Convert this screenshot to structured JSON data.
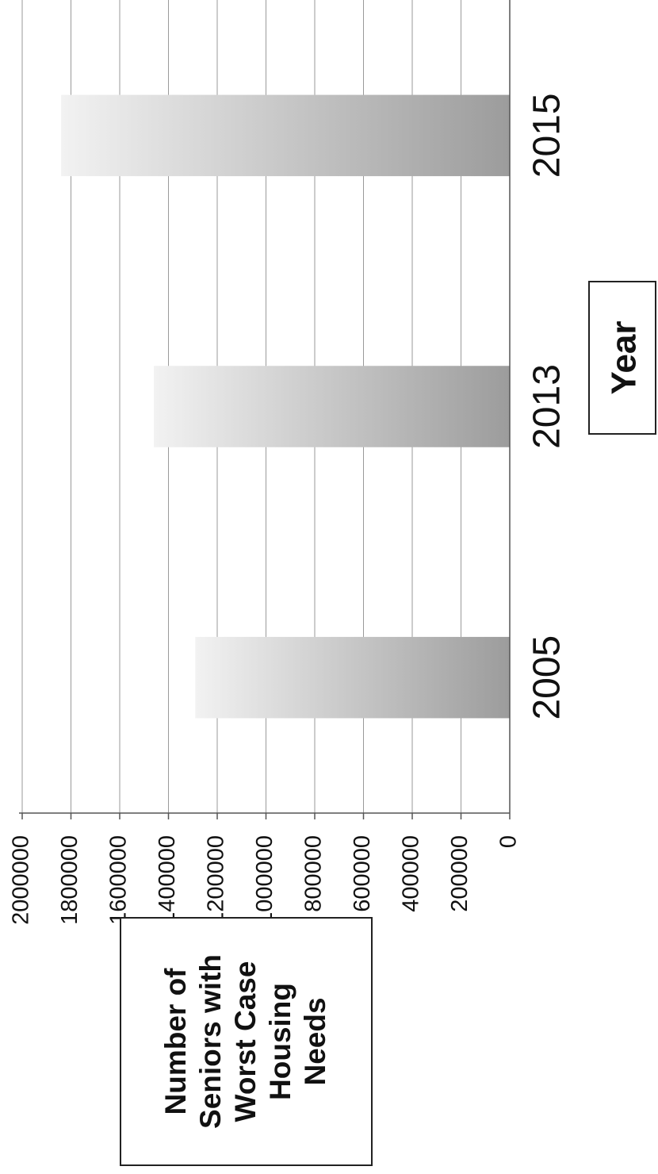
{
  "chart_data": {
    "type": "bar",
    "orientation": "vertical-bars, page rotated 90deg clockwise",
    "categories": [
      "2005",
      "2013",
      "2015"
    ],
    "values": [
      1290000,
      1460000,
      1840000
    ],
    "ylim": [
      0,
      2000000
    ],
    "yticks": [
      "0",
      "200000",
      "400000",
      "600000",
      "800000",
      "1000000",
      "1200000",
      "1400000",
      "1600000",
      "1800000",
      "2000000"
    ],
    "ylabel_lines": [
      "Number of",
      "Seniors with",
      "Worst Case",
      "Housing",
      "Needs"
    ],
    "xlabel": "Year",
    "grid": true,
    "legend": "none",
    "bar_gradient": [
      "#f2f2f2",
      "#9c9c9c"
    ]
  }
}
